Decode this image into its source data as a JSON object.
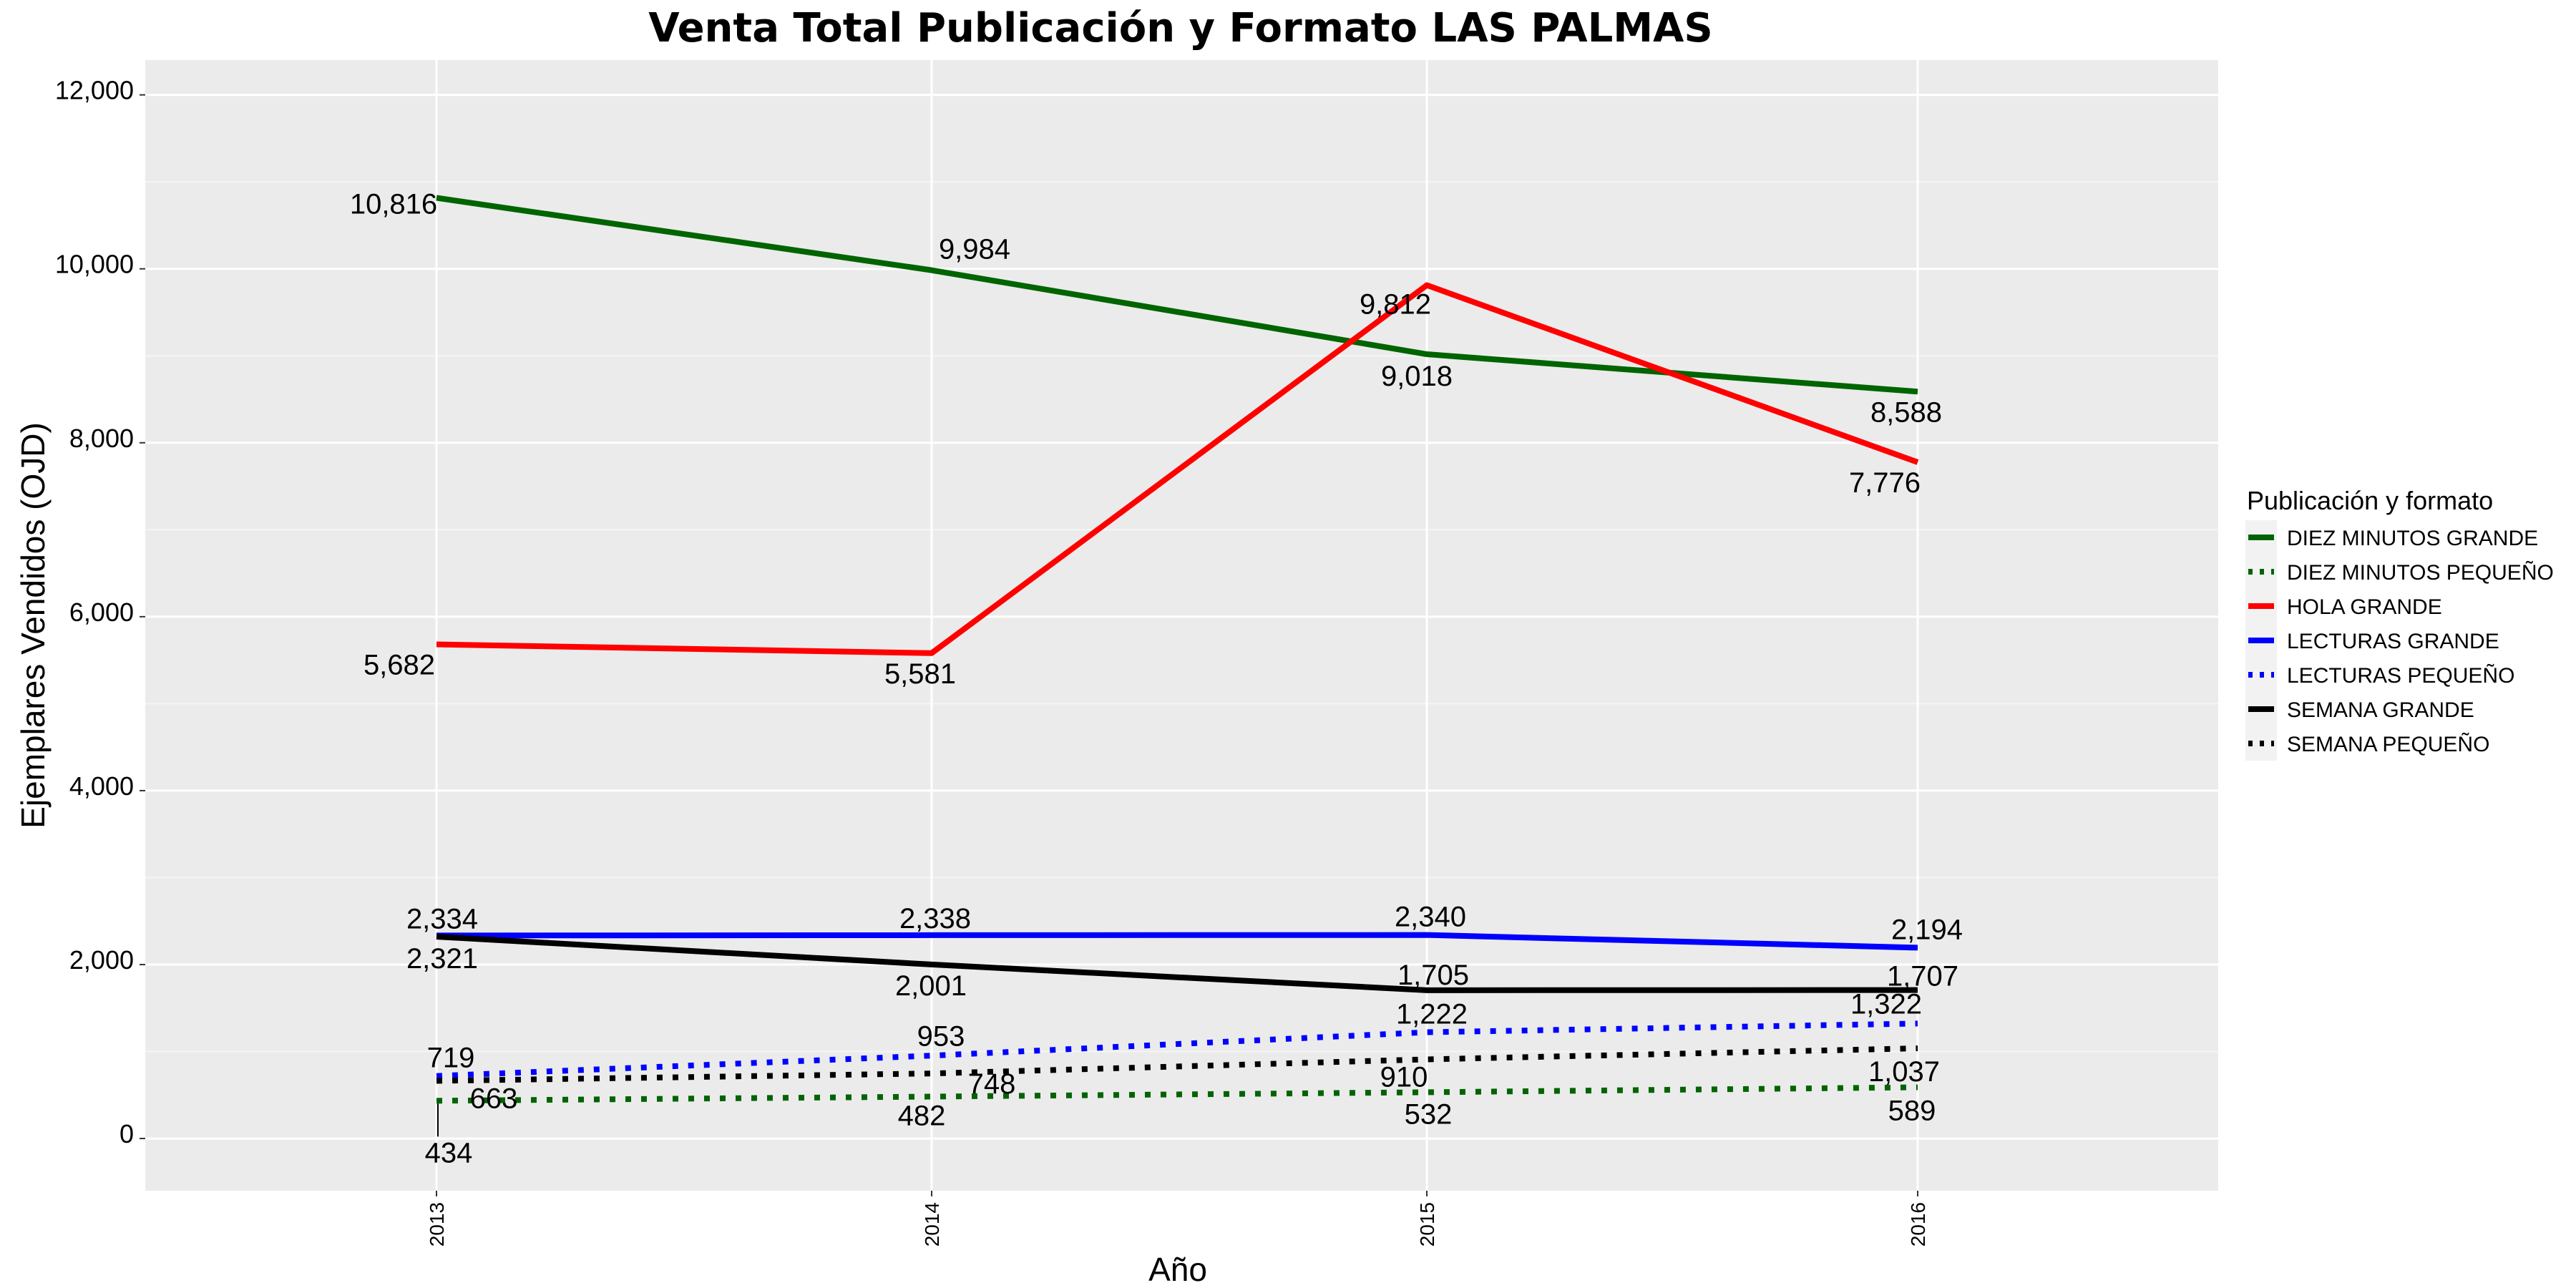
{
  "chart_data": {
    "type": "line",
    "title": "Venta Total Publicación y Formato  LAS PALMAS",
    "xlabel": "Año",
    "ylabel": "Ejemplares Vendidos (OJD)",
    "x": [
      "2013",
      "2014",
      "2015",
      "2016"
    ],
    "ylim": [
      -600,
      12400
    ],
    "yticks": [
      0,
      2000,
      4000,
      6000,
      8000,
      10000,
      12000
    ],
    "ytick_labels": [
      "0",
      "2,000",
      "4,000",
      "6,000",
      "8,000",
      "10,000",
      "12,000"
    ],
    "grid": true,
    "legend_position": "right",
    "legend_title": "Publicación y formato",
    "series": [
      {
        "name": "DIEZ MINUTOS GRANDE",
        "values": [
          10816,
          9984,
          9018,
          8588
        ],
        "labels": [
          "10,816",
          "9,984",
          "9,018",
          "8,588"
        ],
        "color": "#006400",
        "style": "solid"
      },
      {
        "name": "DIEZ MINUTOS PEQUEÑO",
        "values": [
          434,
          482,
          532,
          589
        ],
        "labels": [
          "434",
          "482",
          "532",
          "589"
        ],
        "color": "#006400",
        "style": "dotted"
      },
      {
        "name": "HOLA GRANDE",
        "values": [
          5682,
          5581,
          9812,
          7776
        ],
        "labels": [
          "5,682",
          "5,581",
          "9,812",
          "7,776"
        ],
        "color": "#ff0000",
        "style": "solid"
      },
      {
        "name": "LECTURAS GRANDE",
        "values": [
          2334,
          2338,
          2340,
          2194
        ],
        "labels": [
          "2,334",
          "2,338",
          "2,340",
          "2,194"
        ],
        "color": "#0000ff",
        "style": "solid"
      },
      {
        "name": "LECTURAS PEQUEÑO",
        "values": [
          719,
          953,
          1222,
          1322
        ],
        "labels": [
          "719",
          "953",
          "1,222",
          "1,322"
        ],
        "color": "#0000ff",
        "style": "dotted"
      },
      {
        "name": "SEMANA GRANDE",
        "values": [
          2321,
          2001,
          1705,
          1707
        ],
        "labels": [
          "2,321",
          "2,001",
          "1,705",
          "1,707"
        ],
        "color": "#000000",
        "style": "solid"
      },
      {
        "name": "SEMANA PEQUEÑO",
        "values": [
          663,
          748,
          910,
          1037
        ],
        "labels": [
          "663",
          "748",
          "910",
          "1,037"
        ],
        "color": "#000000",
        "style": "dotted"
      }
    ]
  }
}
